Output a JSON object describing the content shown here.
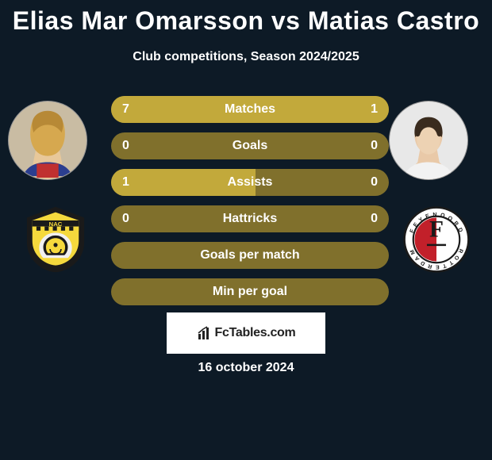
{
  "title": "Elias Mar Omarsson vs Matias Castro",
  "subtitle": "Club competitions, Season 2024/2025",
  "footer_brand": "FcTables.com",
  "footer_date": "16 october 2024",
  "colors": {
    "background": "#0d1a26",
    "bar_track": "#80702c",
    "bar_fill": "#c2a93b",
    "text": "#ffffff",
    "footer_box_bg": "#ffffff",
    "footer_text": "#222222"
  },
  "bars": {
    "height": 34,
    "radius": 18,
    "gap": 12,
    "label_fontsize": 16,
    "value_fontsize": 16
  },
  "stats": [
    {
      "label": "Matches",
      "left_value": "7",
      "right_value": "1",
      "left_pct": 78,
      "right_pct": 22
    },
    {
      "label": "Goals",
      "left_value": "0",
      "right_value": "0",
      "left_pct": 0,
      "right_pct": 0
    },
    {
      "label": "Assists",
      "left_value": "1",
      "right_value": "0",
      "left_pct": 52,
      "right_pct": 0
    },
    {
      "label": "Hattricks",
      "left_value": "0",
      "right_value": "0",
      "left_pct": 0,
      "right_pct": 0
    },
    {
      "label": "Goals per match",
      "left_value": "",
      "right_value": "",
      "left_pct": 0,
      "right_pct": 0
    },
    {
      "label": "Min per goal",
      "left_value": "",
      "right_value": "",
      "left_pct": 0,
      "right_pct": 0
    }
  ],
  "players": {
    "left": {
      "name": "Elias Mar Omarsson",
      "club": "NAC Breda"
    },
    "right": {
      "name": "Matias Castro",
      "club": "Feyenoord"
    }
  }
}
